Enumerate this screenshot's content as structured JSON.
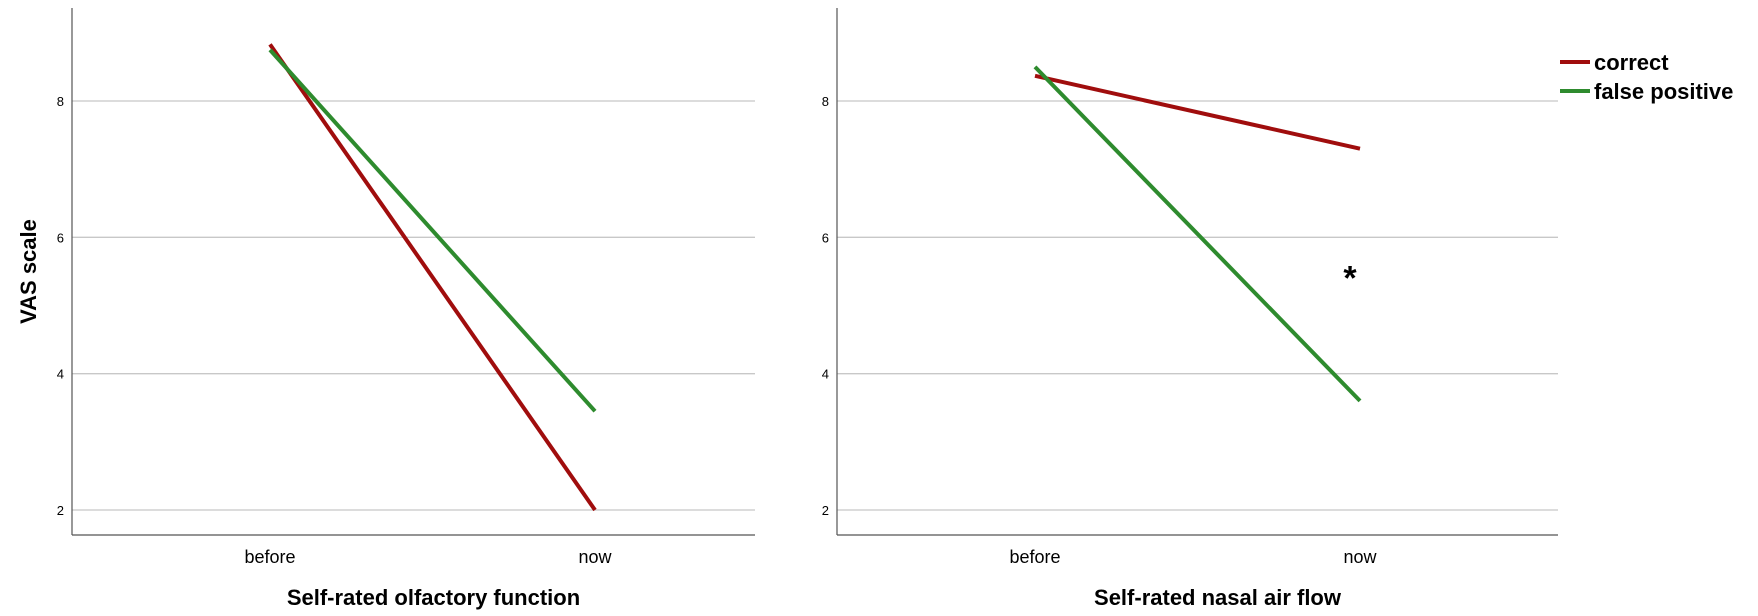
{
  "chart_data": [
    {
      "type": "line",
      "title": "",
      "xlabel": "Self-rated olfactory function",
      "ylabel": "VAS scale",
      "categories": [
        "before",
        "now"
      ],
      "yticks": [
        2,
        4,
        6,
        8
      ],
      "ylim": [
        1.6,
        9.4
      ],
      "grid": true,
      "series": [
        {
          "name": "correct",
          "color": "#a00d0d",
          "values": [
            8.83,
            2.0
          ]
        },
        {
          "name": "false positive",
          "color": "#2e8b2e",
          "values": [
            8.75,
            3.45
          ]
        }
      ],
      "annotations": []
    },
    {
      "type": "line",
      "title": "",
      "xlabel": "Self-rated nasal air flow",
      "ylabel": "",
      "categories": [
        "before",
        "now"
      ],
      "yticks": [
        2,
        4,
        6,
        8
      ],
      "ylim": [
        1.6,
        9.4
      ],
      "grid": true,
      "series": [
        {
          "name": "correct",
          "color": "#a00d0d",
          "values": [
            8.37,
            7.3
          ]
        },
        {
          "name": "false positive",
          "color": "#2e8b2e",
          "values": [
            8.5,
            3.6
          ]
        }
      ],
      "annotations": [
        {
          "text": "*",
          "x": "now",
          "y": 5.5
        }
      ]
    }
  ],
  "legend": {
    "placement": "top-right",
    "items": [
      {
        "label": "correct",
        "color": "#a00d0d"
      },
      {
        "label": "false positive",
        "color": "#2e8b2e"
      }
    ]
  }
}
